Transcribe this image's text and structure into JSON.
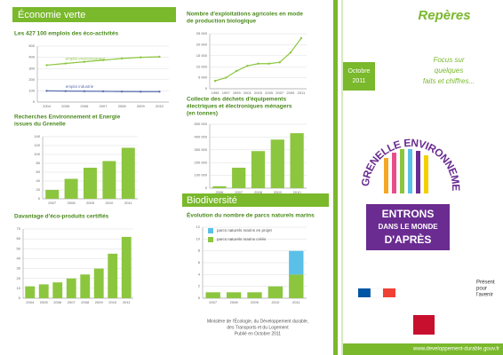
{
  "header_left": "Économie verte",
  "header_mid": "Biodiversité",
  "cover": {
    "title": "Repères",
    "subtitle_lines": [
      "Focus sur",
      "quelques",
      "faits et chiffres..."
    ],
    "date_lines": [
      "Octobre",
      "2011"
    ],
    "logo_arc": "GRENELLE ENVIRONNEMENT",
    "slogan_lines": [
      "ENTRONS",
      "DANS LE MONDE",
      "D'APRÈS"
    ],
    "tagline_lines": [
      "Présent",
      "pour",
      "l'avenir"
    ],
    "website": "www.developpement-durable.gouv.fr"
  },
  "footer_note_lines": [
    "Ministère de l'Écologie, du Développement durable,",
    "des Transports et du Logement",
    "Publié en Octobre 2011"
  ],
  "chart_data": [
    {
      "type": "line",
      "title": [
        "Les 427 100 emplois des éco-activités"
      ],
      "categories": [
        "2004",
        "2005",
        "2006",
        "2007",
        "2008",
        "2009",
        "2010"
      ],
      "series": [
        {
          "name": "emploi environnement",
          "color": "#8cc63f",
          "values": [
            330,
            345,
            360,
            375,
            390,
            400,
            405
          ]
        },
        {
          "name": "emploi industrie",
          "color": "#5a6fb0",
          "values": [
            100,
            98,
            97,
            96,
            94,
            93,
            93
          ]
        }
      ],
      "ylim": [
        0,
        500
      ],
      "yticks": [
        0,
        100,
        200,
        300,
        400,
        500
      ],
      "grid": true
    },
    {
      "type": "bar",
      "title": [
        "Recherches Environnement et Energie",
        "issues du Grenelle"
      ],
      "categories": [
        "2007",
        "2008",
        "2009",
        "2010",
        "2011"
      ],
      "series": [
        {
          "name": null,
          "color": "#8cc63f",
          "values": [
            20,
            45,
            70,
            85,
            115
          ]
        }
      ],
      "ylim": [
        0,
        140
      ],
      "yticks": [
        0,
        20,
        40,
        60,
        80,
        100,
        120,
        140
      ],
      "grid": true
    },
    {
      "type": "bar",
      "title": [
        "Davantage d'éco-produits certifiés"
      ],
      "categories": [
        "2004",
        "2005",
        "2006",
        "2007",
        "2008",
        "2009",
        "2010",
        "2011"
      ],
      "series": [
        {
          "name": null,
          "color": "#8cc63f",
          "values": [
            12,
            14,
            16,
            20,
            24,
            30,
            45,
            62
          ]
        }
      ],
      "ylim": [
        0,
        70
      ],
      "yticks": [
        0,
        10,
        20,
        30,
        40,
        50,
        60,
        70
      ],
      "grid": true
    },
    {
      "type": "line",
      "title": [
        "Nombre d'exploitations agricoles en mode",
        "de production biologique"
      ],
      "categories": [
        "1995",
        "1997",
        "1999",
        "2001",
        "2003",
        "2005",
        "2007",
        "2009",
        "2011"
      ],
      "series": [
        {
          "name": null,
          "color": "#8cc63f",
          "values": [
            3600,
            5000,
            8100,
            10400,
            11400,
            11400,
            12000,
            16400,
            23000
          ]
        }
      ],
      "ylim": [
        0,
        25000
      ],
      "yticks": [
        0,
        {
          "value": 5000,
          "label": "5 000"
        },
        {
          "value": 10000,
          "label": "10 000"
        },
        {
          "value": 15000,
          "label": "15 000"
        },
        {
          "value": 20000,
          "label": "20 000"
        },
        {
          "value": 25000,
          "label": "25 000"
        }
      ],
      "grid": true
    },
    {
      "type": "bar",
      "title": [
        "Collecte des déchets d'équipements",
        "électriques et électroniques ménagers",
        "(en tonnes)"
      ],
      "categories": [
        "2006",
        "2007",
        "2008",
        "2009",
        "2010"
      ],
      "series": [
        {
          "name": null,
          "color": "#8cc63f",
          "values": [
            15000,
            160000,
            290000,
            380000,
            430000
          ]
        }
      ],
      "ylim": [
        0,
        500000
      ],
      "yticks": [
        0,
        {
          "value": 100000,
          "label": "100 000"
        },
        {
          "value": 200000,
          "label": "200 000"
        },
        {
          "value": 300000,
          "label": "300 000"
        },
        {
          "value": 400000,
          "label": "400 000"
        },
        {
          "value": 500000,
          "label": "500 000"
        }
      ],
      "grid": true
    },
    {
      "type": "stacked",
      "title": [
        "Évolution du nombre de parcs naturels marins"
      ],
      "categories": [
        "2007",
        "2008",
        "2009",
        "2010",
        "2011"
      ],
      "series": [
        {
          "name": "parcs naturels marins créés",
          "color": "#8cc63f",
          "values": [
            1,
            1,
            1,
            2,
            4
          ]
        },
        {
          "name": "parcs naturels marins en projet",
          "color": "#5bc0e8",
          "values": [
            0,
            0,
            0,
            0,
            4
          ]
        }
      ],
      "ylim": [
        0,
        12
      ],
      "yticks": [
        0,
        2,
        4,
        6,
        8,
        10,
        12
      ],
      "grid": true
    }
  ]
}
